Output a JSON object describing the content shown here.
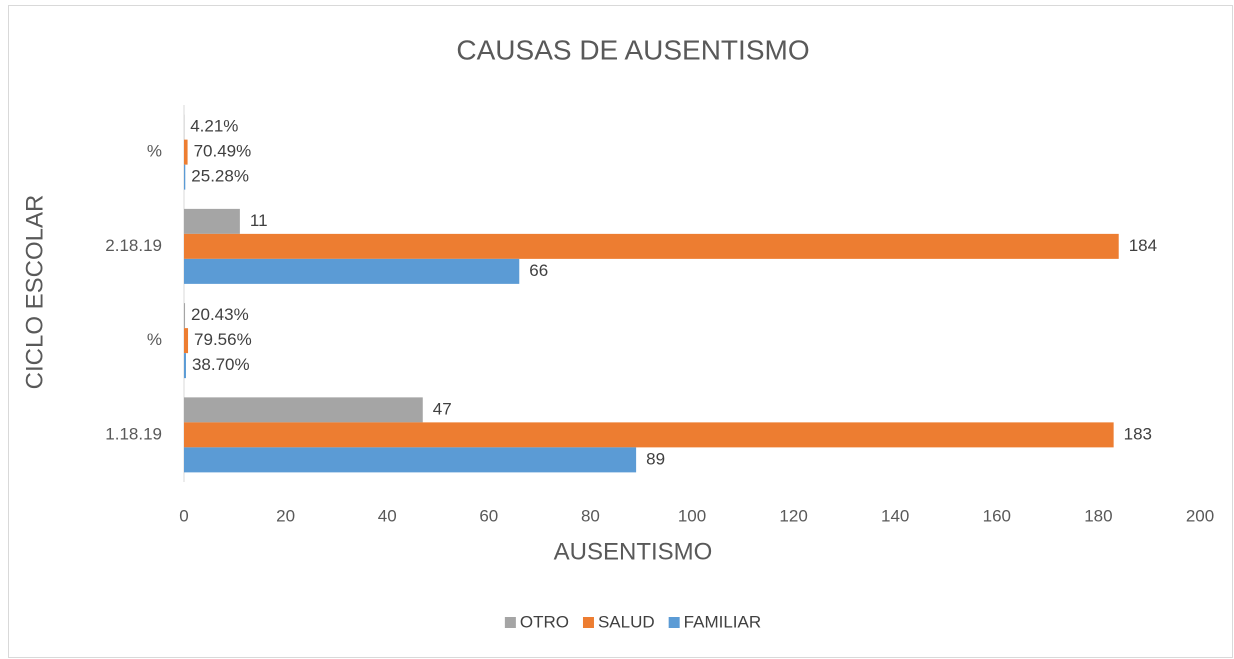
{
  "chart_data": {
    "type": "hbar",
    "title": "CAUSAS DE AUSENTISMO",
    "x_label": "AUSENTISMO",
    "y_label": "CICLO ESCOLAR",
    "categories": [
      "1.18.19",
      "%",
      "2.18.19",
      "%"
    ],
    "series": [
      {
        "name": "OTRO",
        "color": "#a5a5a5",
        "values": [
          47,
          0.2043,
          11,
          0.0421
        ],
        "value_labels": [
          "47",
          "20.43%",
          "11",
          "4.21%"
        ]
      },
      {
        "name": "SALUD",
        "color": "#ed7d31",
        "values": [
          183,
          0.7956,
          184,
          0.7049
        ],
        "value_labels": [
          "183",
          "79.56%",
          "184",
          "70.49%"
        ]
      },
      {
        "name": "FAMILIAR",
        "color": "#5b9bd5",
        "values": [
          89,
          0.387,
          66,
          0.2528
        ],
        "value_labels": [
          "89",
          "38.70%",
          "66",
          "25.28%"
        ]
      }
    ],
    "xlim": [
      0,
      200
    ],
    "xticks": [
      0,
      20,
      40,
      60,
      80,
      100,
      120,
      140,
      160,
      180,
      200
    ],
    "legend": "bottom",
    "grid": false
  }
}
